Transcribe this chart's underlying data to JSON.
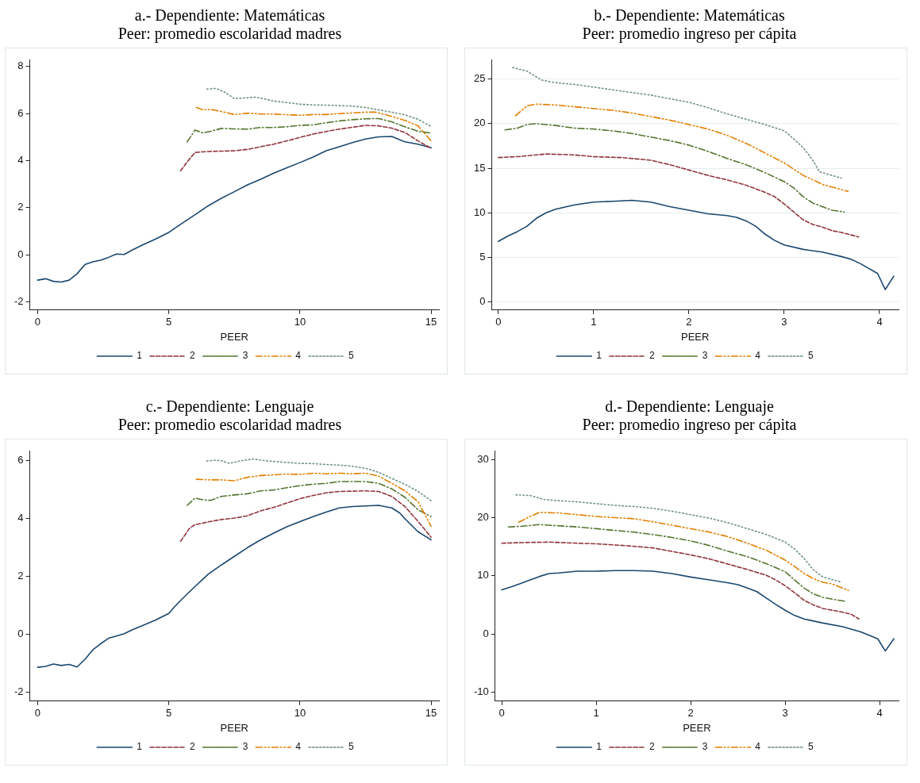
{
  "chart_data": [
    {
      "type": "line",
      "title": "a.- Dependiente: Matemáticas",
      "subtitle": "Peer: promedio escolaridad madres",
      "xlabel": "PEER",
      "xlim": [
        -0.3,
        15.3
      ],
      "xticks": [
        0,
        5,
        10,
        15
      ],
      "ylim": [
        -2.35,
        8.3
      ],
      "yticks": [
        -2,
        0,
        2,
        4,
        6,
        8
      ],
      "grid": false,
      "legend": "bottom",
      "marker": "none",
      "series": [
        {
          "name": "1",
          "color": "#1a476f",
          "line_style": "solid",
          "x": [
            0,
            0.3,
            0.6,
            0.9,
            1.2,
            1.5,
            1.8,
            2.1,
            2.4,
            2.7,
            3.0,
            3.3,
            3.6,
            4,
            4.5,
            5,
            5.5,
            6,
            6.5,
            7,
            7.5,
            8,
            8.5,
            9,
            9.5,
            10,
            10.5,
            11,
            11.5,
            12,
            12.5,
            13,
            13.5,
            14,
            14.5,
            15
          ],
          "values": [
            -1.08,
            -1.02,
            -1.13,
            -1.16,
            -1.08,
            -0.81,
            -0.42,
            -0.3,
            -0.23,
            -0.11,
            0.03,
            0.01,
            0.2,
            0.42,
            0.67,
            0.95,
            1.33,
            1.7,
            2.08,
            2.4,
            2.68,
            2.97,
            3.21,
            3.47,
            3.7,
            3.92,
            4.15,
            4.42,
            4.59,
            4.77,
            4.92,
            5.01,
            5.03,
            4.8,
            4.7,
            4.55
          ]
        },
        {
          "name": "2",
          "color": "#90353b",
          "line_style": "dashed",
          "x": [
            5.45,
            5.7,
            6,
            6.5,
            7.5,
            8,
            8.5,
            9,
            9.5,
            10,
            10.5,
            11,
            11.5,
            12,
            12.5,
            13,
            13.5,
            14,
            14.5,
            15
          ],
          "values": [
            3.57,
            3.95,
            4.35,
            4.39,
            4.42,
            4.48,
            4.59,
            4.7,
            4.84,
            4.99,
            5.13,
            5.24,
            5.34,
            5.42,
            5.5,
            5.48,
            5.38,
            5.2,
            4.84,
            4.53
          ]
        },
        {
          "name": "3",
          "color": "#55752f",
          "line_style": "dashdot",
          "x": [
            5.7,
            6,
            6.3,
            6.6,
            7,
            7.5,
            8,
            8.5,
            9,
            9.5,
            10,
            10.5,
            11,
            11.5,
            12,
            12.5,
            13,
            13.5,
            14,
            14.5,
            15
          ],
          "values": [
            4.8,
            5.3,
            5.18,
            5.25,
            5.37,
            5.35,
            5.34,
            5.41,
            5.41,
            5.44,
            5.5,
            5.52,
            5.61,
            5.69,
            5.74,
            5.78,
            5.79,
            5.65,
            5.44,
            5.25,
            5.17
          ]
        },
        {
          "name": "4",
          "color": "#e37e00",
          "line_style": "dashdotdot",
          "x": [
            6.05,
            6.3,
            6.6,
            7,
            7.5,
            8,
            8.5,
            9,
            9.5,
            10,
            10.5,
            11,
            11.5,
            12,
            12.5,
            12.9,
            13.5,
            14,
            14.5,
            15
          ],
          "values": [
            6.26,
            6.16,
            6.18,
            6.09,
            5.96,
            6.02,
            5.98,
            5.98,
            5.95,
            5.93,
            5.96,
            5.96,
            6.0,
            6.03,
            6.06,
            6.06,
            5.88,
            5.71,
            5.48,
            4.84
          ]
        },
        {
          "name": "5",
          "color": "#6e8e84",
          "line_style": "dotted",
          "x": [
            6.45,
            6.8,
            7.1,
            7.5,
            8,
            8.3,
            8.7,
            9,
            9.5,
            10,
            10.5,
            11,
            11.5,
            12,
            12.5,
            13,
            13.5,
            14,
            14.5,
            15
          ],
          "values": [
            7.04,
            7.07,
            6.93,
            6.64,
            6.67,
            6.7,
            6.61,
            6.53,
            6.47,
            6.4,
            6.37,
            6.36,
            6.34,
            6.32,
            6.26,
            6.16,
            6.06,
            5.95,
            5.76,
            5.45
          ]
        }
      ]
    },
    {
      "type": "line",
      "title": "b.- Dependiente: Matemáticas",
      "subtitle": "Peer: promedio ingreso per cápita",
      "xlabel": "PEER",
      "xlim": [
        -0.07,
        4.2
      ],
      "xticks": [
        0,
        1,
        2,
        3,
        4
      ],
      "ylim": [
        -0.9,
        27.2
      ],
      "yticks": [
        0,
        5,
        10,
        15,
        20,
        25
      ],
      "grid": "y",
      "legend": "bottom",
      "marker": "none",
      "series": [
        {
          "name": "1",
          "color": "#1a476f",
          "line_style": "solid",
          "x": [
            0,
            0.1,
            0.2,
            0.3,
            0.4,
            0.5,
            0.6,
            0.8,
            1,
            1.2,
            1.4,
            1.6,
            1.8,
            2,
            2.2,
            2.4,
            2.5,
            2.6,
            2.7,
            2.8,
            2.9,
            3,
            3.2,
            3.4,
            3.6,
            3.7,
            3.8,
            3.98,
            4.06,
            4.15
          ],
          "values": [
            6.8,
            7.4,
            7.9,
            8.5,
            9.4,
            10.0,
            10.4,
            10.9,
            11.2,
            11.3,
            11.4,
            11.2,
            10.7,
            10.3,
            9.9,
            9.7,
            9.5,
            9.1,
            8.5,
            7.6,
            6.9,
            6.4,
            5.9,
            5.6,
            5.1,
            4.8,
            4.3,
            3.2,
            1.4,
            2.9
          ]
        },
        {
          "name": "2",
          "color": "#90353b",
          "line_style": "dashed",
          "x": [
            0,
            0.2,
            0.5,
            0.8,
            1,
            1.3,
            1.6,
            1.8,
            2,
            2.2,
            2.4,
            2.6,
            2.8,
            2.9,
            3,
            3.1,
            3.2,
            3.3,
            3.4,
            3.5,
            3.6,
            3.78
          ],
          "values": [
            16.2,
            16.3,
            16.6,
            16.5,
            16.3,
            16.2,
            15.9,
            15.4,
            14.8,
            14.2,
            13.7,
            13.1,
            12.3,
            11.8,
            11.0,
            10.1,
            9.2,
            8.7,
            8.4,
            8.0,
            7.8,
            7.3
          ]
        },
        {
          "name": "3",
          "color": "#55752f",
          "line_style": "dashdot",
          "x": [
            0.07,
            0.2,
            0.3,
            0.4,
            0.6,
            0.8,
            1,
            1.2,
            1.4,
            1.6,
            1.8,
            2,
            2.2,
            2.4,
            2.6,
            2.8,
            3,
            3.1,
            3.2,
            3.3,
            3.4,
            3.5,
            3.63
          ],
          "values": [
            19.3,
            19.5,
            19.9,
            20.0,
            19.8,
            19.5,
            19.4,
            19.2,
            18.9,
            18.5,
            18.1,
            17.6,
            16.9,
            16.1,
            15.4,
            14.5,
            13.5,
            12.8,
            11.8,
            11.1,
            10.7,
            10.3,
            10.1
          ]
        },
        {
          "name": "4",
          "color": "#e37e00",
          "line_style": "dashdotdot",
          "x": [
            0.18,
            0.3,
            0.4,
            0.6,
            0.8,
            1,
            1.2,
            1.4,
            1.6,
            1.8,
            2,
            2.2,
            2.4,
            2.6,
            2.8,
            3,
            3.1,
            3.2,
            3.3,
            3.4,
            3.5,
            3.67
          ],
          "values": [
            20.9,
            22.0,
            22.2,
            22.1,
            21.9,
            21.7,
            21.5,
            21.2,
            20.8,
            20.4,
            19.9,
            19.4,
            18.7,
            17.8,
            16.7,
            15.6,
            14.9,
            14.2,
            13.7,
            13.2,
            12.9,
            12.4
          ]
        },
        {
          "name": "5",
          "color": "#6e8e84",
          "line_style": "dotted",
          "x": [
            0.15,
            0.3,
            0.45,
            0.6,
            0.8,
            1,
            1.2,
            1.4,
            1.6,
            1.8,
            2,
            2.2,
            2.4,
            2.6,
            2.8,
            3,
            3.1,
            3.2,
            3.3,
            3.37,
            3.5,
            3.6
          ],
          "values": [
            26.3,
            25.9,
            24.9,
            24.6,
            24.4,
            24.1,
            23.8,
            23.5,
            23.2,
            22.8,
            22.4,
            21.8,
            21.1,
            20.5,
            19.9,
            19.2,
            18.3,
            17.3,
            15.9,
            14.6,
            14.2,
            13.9
          ]
        }
      ]
    },
    {
      "type": "line",
      "title": "c.- Dependiente: Lenguaje",
      "subtitle": "Peer: promedio escolaridad madres",
      "xlabel": "PEER",
      "xlim": [
        -0.3,
        15.3
      ],
      "xticks": [
        0,
        5,
        10,
        15
      ],
      "ylim": [
        -2.3,
        6.35
      ],
      "yticks": [
        -2,
        0,
        2,
        4,
        6
      ],
      "grid": false,
      "legend": "bottom",
      "marker": "none",
      "series": [
        {
          "name": "1",
          "color": "#1a476f",
          "line_style": "solid",
          "x": [
            0,
            0.3,
            0.6,
            0.9,
            1.2,
            1.5,
            1.8,
            2.1,
            2.4,
            2.7,
            3,
            3.3,
            3.6,
            4,
            4.5,
            5,
            5.2,
            5.5,
            6,
            6.5,
            7,
            7.5,
            8,
            8.5,
            9,
            9.5,
            10,
            10.5,
            11,
            11.5,
            12,
            12.5,
            13,
            13.5,
            13.8,
            14,
            14.5,
            14.8,
            15
          ],
          "values": [
            -1.13,
            -1.1,
            -1.02,
            -1.07,
            -1.03,
            -1.12,
            -0.86,
            -0.53,
            -0.32,
            -0.13,
            -0.05,
            0.03,
            0.16,
            0.31,
            0.5,
            0.73,
            0.94,
            1.22,
            1.66,
            2.08,
            2.4,
            2.7,
            3.0,
            3.27,
            3.5,
            3.72,
            3.9,
            4.07,
            4.23,
            4.37,
            4.42,
            4.44,
            4.46,
            4.37,
            4.2,
            4.0,
            3.55,
            3.38,
            3.27
          ]
        },
        {
          "name": "2",
          "color": "#90353b",
          "line_style": "dashed",
          "x": [
            5.45,
            5.8,
            6,
            6.5,
            7,
            7.5,
            8,
            8.5,
            9,
            9.5,
            10,
            10.5,
            11,
            11.5,
            12,
            12.5,
            13,
            13.5,
            14,
            14.5,
            15
          ],
          "values": [
            3.22,
            3.68,
            3.79,
            3.89,
            3.97,
            4.02,
            4.1,
            4.27,
            4.39,
            4.54,
            4.69,
            4.8,
            4.89,
            4.94,
            4.95,
            4.96,
            4.94,
            4.77,
            4.42,
            3.91,
            3.36
          ]
        },
        {
          "name": "3",
          "color": "#55752f",
          "line_style": "dashdot",
          "x": [
            5.7,
            6,
            6.3,
            6.6,
            7,
            7.5,
            8,
            8.5,
            9,
            9.5,
            10,
            10.5,
            11,
            11.5,
            12,
            12.5,
            13,
            13.5,
            14,
            14.5,
            15
          ],
          "values": [
            4.46,
            4.71,
            4.65,
            4.63,
            4.77,
            4.82,
            4.86,
            4.96,
            4.99,
            5.07,
            5.14,
            5.19,
            5.22,
            5.28,
            5.28,
            5.28,
            5.22,
            5.03,
            4.74,
            4.31,
            4.07
          ]
        },
        {
          "name": "4",
          "color": "#e37e00",
          "line_style": "dashdotdot",
          "x": [
            6.05,
            6.5,
            7,
            7.5,
            8,
            8.5,
            9,
            9.5,
            10,
            10.5,
            11,
            11.5,
            12,
            12.5,
            13,
            13.5,
            14,
            14.5,
            15
          ],
          "values": [
            5.36,
            5.34,
            5.34,
            5.31,
            5.43,
            5.49,
            5.51,
            5.54,
            5.53,
            5.57,
            5.55,
            5.57,
            5.55,
            5.57,
            5.47,
            5.22,
            4.96,
            4.59,
            3.74
          ]
        },
        {
          "name": "5",
          "color": "#6e8e84",
          "line_style": "dotted",
          "x": [
            6.45,
            6.8,
            7,
            7.3,
            7.7,
            8.2,
            8.7,
            9.5,
            10,
            10.5,
            11,
            11.5,
            12,
            12.5,
            13,
            13.5,
            14,
            14.5,
            15
          ],
          "values": [
            5.99,
            6.02,
            6.0,
            5.91,
            5.99,
            6.06,
            6.0,
            5.94,
            5.91,
            5.9,
            5.87,
            5.85,
            5.81,
            5.74,
            5.6,
            5.39,
            5.19,
            4.94,
            4.62
          ]
        }
      ]
    },
    {
      "type": "line",
      "title": "d.- Dependiente: Lenguaje",
      "subtitle": "Peer: promedio ingreso per cápita",
      "xlabel": "PEER",
      "xlim": [
        -0.07,
        4.2
      ],
      "xticks": [
        0,
        1,
        2,
        3,
        4
      ],
      "ylim": [
        -11.5,
        31.5
      ],
      "yticks": [
        -10,
        0,
        10,
        20,
        30
      ],
      "grid": false,
      "legend": "bottom",
      "marker": "none",
      "series": [
        {
          "name": "1",
          "color": "#1a476f",
          "line_style": "solid",
          "x": [
            0,
            0.1,
            0.2,
            0.3,
            0.4,
            0.5,
            0.6,
            0.8,
            1,
            1.2,
            1.4,
            1.6,
            1.8,
            2,
            2.2,
            2.4,
            2.5,
            2.6,
            2.7,
            2.8,
            2.9,
            3,
            3.1,
            3.2,
            3.4,
            3.6,
            3.8,
            3.98,
            4.06,
            4.15
          ],
          "values": [
            7.6,
            8.1,
            8.7,
            9.3,
            9.9,
            10.4,
            10.5,
            10.8,
            10.8,
            10.9,
            10.9,
            10.8,
            10.4,
            9.8,
            9.3,
            8.8,
            8.5,
            7.9,
            7.3,
            6.2,
            5.1,
            4.1,
            3.2,
            2.6,
            1.9,
            1.3,
            0.4,
            -0.8,
            -2.9,
            -0.8
          ]
        },
        {
          "name": "2",
          "color": "#90353b",
          "line_style": "dashed",
          "x": [
            0,
            0.2,
            0.5,
            0.8,
            1,
            1.3,
            1.6,
            1.8,
            2,
            2.2,
            2.4,
            2.6,
            2.8,
            2.9,
            3,
            3.1,
            3.2,
            3.3,
            3.4,
            3.5,
            3.6,
            3.7,
            3.78
          ],
          "values": [
            15.6,
            15.7,
            15.8,
            15.6,
            15.5,
            15.2,
            14.8,
            14.2,
            13.6,
            12.9,
            12.0,
            11.1,
            10.1,
            9.3,
            8.3,
            7.1,
            5.8,
            5.0,
            4.4,
            4.1,
            3.8,
            3.4,
            2.6
          ]
        },
        {
          "name": "3",
          "color": "#55752f",
          "line_style": "dashdot",
          "x": [
            0.07,
            0.2,
            0.4,
            0.6,
            0.8,
            1,
            1.2,
            1.4,
            1.6,
            1.8,
            2,
            2.2,
            2.4,
            2.6,
            2.8,
            3,
            3.1,
            3.2,
            3.3,
            3.4,
            3.5,
            3.65
          ],
          "values": [
            18.4,
            18.5,
            18.8,
            18.6,
            18.4,
            18.1,
            17.8,
            17.5,
            17.1,
            16.6,
            16.0,
            15.2,
            14.2,
            13.3,
            12.1,
            10.7,
            9.3,
            7.9,
            6.9,
            6.3,
            6.0,
            5.6
          ]
        },
        {
          "name": "4",
          "color": "#e37e00",
          "line_style": "dashdotdot",
          "x": [
            0.18,
            0.3,
            0.4,
            0.6,
            0.8,
            1,
            1.2,
            1.4,
            1.6,
            1.8,
            2,
            2.2,
            2.4,
            2.6,
            2.8,
            3,
            3.1,
            3.2,
            3.3,
            3.4,
            3.5,
            3.67
          ],
          "values": [
            19.2,
            20.2,
            20.9,
            20.8,
            20.5,
            20.2,
            20.0,
            19.8,
            19.3,
            18.7,
            18.1,
            17.5,
            16.7,
            15.6,
            14.4,
            12.7,
            11.6,
            10.4,
            9.5,
            8.9,
            8.6,
            7.5
          ]
        },
        {
          "name": "5",
          "color": "#6e8e84",
          "line_style": "dotted",
          "x": [
            0.15,
            0.3,
            0.45,
            0.6,
            0.8,
            1,
            1.2,
            1.4,
            1.6,
            1.8,
            2,
            2.2,
            2.4,
            2.6,
            2.8,
            3,
            3.1,
            3.2,
            3.3,
            3.4,
            3.6
          ],
          "values": [
            23.9,
            23.8,
            23.1,
            22.9,
            22.7,
            22.4,
            22.1,
            21.9,
            21.6,
            21.1,
            20.5,
            19.9,
            19.1,
            18.1,
            17.1,
            15.8,
            14.6,
            13.0,
            11.0,
            9.8,
            8.9
          ]
        }
      ]
    }
  ]
}
